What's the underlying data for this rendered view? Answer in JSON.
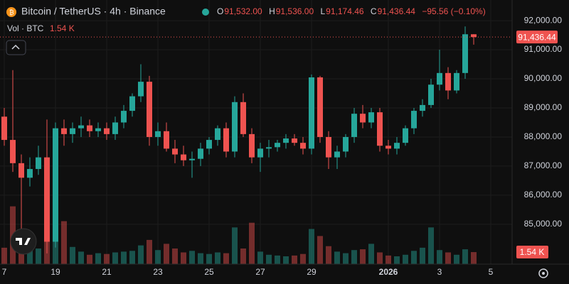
{
  "chart_data": {
    "type": "candlestick",
    "title": "Bitcoin / TetherUS · 4h · Binance",
    "legend": {
      "o_key": "O",
      "o": "91,532.00",
      "h_key": "H",
      "h": "91,536.00",
      "l_key": "L",
      "l": "91,174.46",
      "c_key": "C",
      "c": "91,436.44",
      "change": "−95.56 (−0.10%)"
    },
    "volume_title": "Vol · BTC",
    "volume_value_label": "1.54 K",
    "categories": [
      "7",
      null,
      null,
      null,
      null,
      null,
      "19",
      null,
      null,
      null,
      null,
      null,
      "21",
      null,
      null,
      null,
      null,
      null,
      "23",
      null,
      null,
      null,
      null,
      null,
      "25",
      null,
      null,
      null,
      null,
      null,
      "27",
      null,
      null,
      null,
      null,
      null,
      "29",
      null,
      null,
      null,
      null,
      null,
      null,
      null,
      null,
      "2026",
      null,
      null,
      null,
      null,
      null,
      "3",
      null,
      null,
      null,
      null,
      null,
      "5"
    ],
    "open": [
      88700,
      87900,
      87100,
      86600,
      86900,
      87300,
      84400,
      88300,
      88100,
      88300,
      88400,
      88200,
      88300,
      88100,
      88500,
      88900,
      89400,
      89900,
      88000,
      88200,
      87600,
      87400,
      87200,
      87250,
      87600,
      87900,
      88300,
      87500,
      89200,
      88100,
      87300,
      87600,
      87650,
      87800,
      87950,
      87800,
      87600,
      90050,
      88000,
      87300,
      87500,
      88000,
      88800,
      88500,
      88850,
      87700,
      87600,
      87800,
      88300,
      88900,
      89100,
      89800,
      90200,
      89600,
      90200,
      91532,
      null,
      null
    ],
    "high": [
      89000,
      90300,
      87400,
      87300,
      87700,
      88600,
      88500,
      88600,
      88500,
      88700,
      88600,
      88500,
      88500,
      88700,
      89100,
      89500,
      90500,
      90100,
      88500,
      88500,
      87900,
      87700,
      87500,
      87800,
      88000,
      88400,
      88500,
      89400,
      89500,
      88300,
      87800,
      87900,
      87900,
      88100,
      88100,
      88000,
      90150,
      90100,
      88200,
      87700,
      88100,
      89000,
      89100,
      89000,
      89000,
      87900,
      88000,
      88400,
      89000,
      89300,
      90000,
      91000,
      90400,
      90300,
      91800,
      91536,
      null,
      null
    ],
    "low": [
      87700,
      86800,
      84800,
      86300,
      86700,
      84000,
      84200,
      87700,
      87800,
      88000,
      88000,
      88000,
      87900,
      87900,
      88300,
      88700,
      89200,
      87700,
      87700,
      87500,
      87100,
      87000,
      86600,
      87000,
      87400,
      87700,
      87300,
      87300,
      88000,
      87100,
      86800,
      87300,
      87500,
      87600,
      87700,
      87400,
      87400,
      87800,
      86900,
      86900,
      87300,
      87800,
      88300,
      88300,
      87500,
      87400,
      87400,
      87700,
      88100,
      88700,
      89000,
      89600,
      89300,
      89500,
      90000,
      91174.46,
      null,
      null
    ],
    "close": [
      87900,
      87100,
      86600,
      86900,
      87300,
      84400,
      88300,
      88100,
      88300,
      88400,
      88200,
      88300,
      88100,
      88500,
      88900,
      89400,
      89900,
      88000,
      88200,
      87600,
      87400,
      87200,
      87250,
      87600,
      87900,
      88300,
      87500,
      89200,
      88100,
      87300,
      87600,
      87650,
      87800,
      87950,
      87800,
      87600,
      90050,
      88000,
      87300,
      87500,
      88000,
      88800,
      88500,
      88850,
      87700,
      87600,
      87800,
      88300,
      88900,
      89100,
      89800,
      90200,
      89600,
      90200,
      91532,
      91436.44,
      null,
      null
    ],
    "volume": [
      2.1,
      7.4,
      3.2,
      2.4,
      2.0,
      7.6,
      3.5,
      5.5,
      2.2,
      1.6,
      1.2,
      1.4,
      1.3,
      1.5,
      1.6,
      1.7,
      2.4,
      3.1,
      1.8,
      2.6,
      2.0,
      1.5,
      1.7,
      1.4,
      1.3,
      1.5,
      1.4,
      4.7,
      2.0,
      5.3,
      1.6,
      1.2,
      1.1,
      1.0,
      1.1,
      1.3,
      4.5,
      3.6,
      2.3,
      1.6,
      1.4,
      1.8,
      1.9,
      2.6,
      1.5,
      1.1,
      1.0,
      1.2,
      1.7,
      2.1,
      4.7,
      1.8,
      1.5,
      1.2,
      1.9,
      1.54,
      null,
      null
    ],
    "up_color": "#26a69a",
    "down_color": "#ef5350",
    "ylim": [
      83630,
      92710
    ],
    "yticks": [
      {
        "value": 85000,
        "label": "85,000.00"
      },
      {
        "value": 86000,
        "label": "86,000.00"
      },
      {
        "value": 87000,
        "label": "87,000.00"
      },
      {
        "value": 88000,
        "label": "88,000.00"
      },
      {
        "value": 89000,
        "label": "89,000.00"
      },
      {
        "value": 90000,
        "label": "90,000.00"
      },
      {
        "value": 91000,
        "label": "91,000.00"
      },
      {
        "value": 92000,
        "label": "92,000.00"
      }
    ],
    "vlim": [
      0,
      10
    ],
    "last_price": {
      "value": 91436.44,
      "label": "91,436.44"
    },
    "grid": true
  }
}
